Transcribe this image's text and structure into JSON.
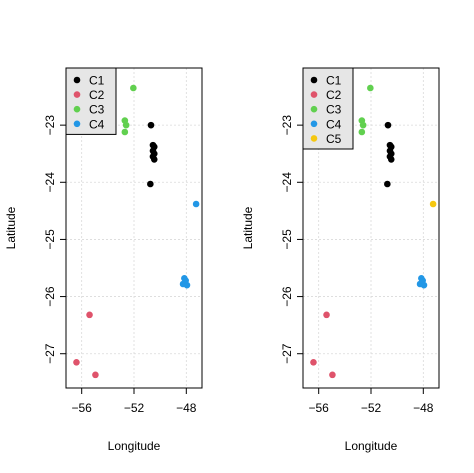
{
  "chart_data": [
    {
      "type": "scatter",
      "xlabel": "Longitude",
      "ylabel": "Latitude",
      "xlim": [
        -57.2,
        -46.8
      ],
      "ylim": [
        -27.6,
        -22.0
      ],
      "xticks": [
        -56,
        -52,
        -48
      ],
      "yticks": [
        -23,
        -24,
        -25,
        -26,
        -27
      ],
      "grid": true,
      "legend": {
        "position": "top-left",
        "entries": [
          {
            "label": "C1",
            "color": "#000000"
          },
          {
            "label": "C2",
            "color": "#DF536B"
          },
          {
            "label": "C3",
            "color": "#61D04F"
          },
          {
            "label": "C4",
            "color": "#2297E6"
          }
        ]
      },
      "series": [
        {
          "name": "C1",
          "color": "#000000",
          "points": [
            {
              "x": -50.7,
              "y": -23.0
            },
            {
              "x": -50.55,
              "y": -23.35
            },
            {
              "x": -50.45,
              "y": -23.38
            },
            {
              "x": -50.55,
              "y": -23.45
            },
            {
              "x": -50.45,
              "y": -23.5
            },
            {
              "x": -50.55,
              "y": -23.55
            },
            {
              "x": -50.45,
              "y": -23.6
            },
            {
              "x": -50.75,
              "y": -24.03
            }
          ]
        },
        {
          "name": "C2",
          "color": "#DF536B",
          "points": [
            {
              "x": -55.4,
              "y": -26.32
            },
            {
              "x": -56.4,
              "y": -27.15
            },
            {
              "x": -54.95,
              "y": -27.37
            }
          ]
        },
        {
          "name": "C3",
          "color": "#61D04F",
          "points": [
            {
              "x": -52.05,
              "y": -22.35
            },
            {
              "x": -52.7,
              "y": -22.92
            },
            {
              "x": -52.6,
              "y": -23.0
            },
            {
              "x": -52.7,
              "y": -23.12
            }
          ]
        },
        {
          "name": "C4",
          "color": "#2297E6",
          "points": [
            {
              "x": -47.25,
              "y": -24.38
            },
            {
              "x": -48.15,
              "y": -25.68
            },
            {
              "x": -48.25,
              "y": -25.78
            },
            {
              "x": -47.95,
              "y": -25.8
            },
            {
              "x": -48.05,
              "y": -25.72
            }
          ]
        }
      ]
    },
    {
      "type": "scatter",
      "xlabel": "Longitude",
      "ylabel": "Latitude",
      "xlim": [
        -57.2,
        -46.8
      ],
      "ylim": [
        -27.6,
        -22.0
      ],
      "xticks": [
        -56,
        -52,
        -48
      ],
      "yticks": [
        -23,
        -24,
        -25,
        -26,
        -27
      ],
      "grid": true,
      "legend": {
        "position": "top-left",
        "entries": [
          {
            "label": "C1",
            "color": "#000000"
          },
          {
            "label": "C2",
            "color": "#DF536B"
          },
          {
            "label": "C3",
            "color": "#61D04F"
          },
          {
            "label": "C4",
            "color": "#2297E6"
          },
          {
            "label": "C5",
            "color": "#F5C710"
          }
        ]
      },
      "series": [
        {
          "name": "C1",
          "color": "#000000",
          "points": [
            {
              "x": -50.7,
              "y": -23.0
            },
            {
              "x": -50.55,
              "y": -23.35
            },
            {
              "x": -50.45,
              "y": -23.38
            },
            {
              "x": -50.55,
              "y": -23.45
            },
            {
              "x": -50.45,
              "y": -23.5
            },
            {
              "x": -50.55,
              "y": -23.55
            },
            {
              "x": -50.45,
              "y": -23.6
            },
            {
              "x": -50.75,
              "y": -24.03
            }
          ]
        },
        {
          "name": "C2",
          "color": "#DF536B",
          "points": [
            {
              "x": -55.4,
              "y": -26.32
            },
            {
              "x": -56.4,
              "y": -27.15
            },
            {
              "x": -54.95,
              "y": -27.37
            }
          ]
        },
        {
          "name": "C3",
          "color": "#61D04F",
          "points": [
            {
              "x": -52.05,
              "y": -22.35
            },
            {
              "x": -52.7,
              "y": -22.92
            },
            {
              "x": -52.6,
              "y": -23.0
            },
            {
              "x": -52.7,
              "y": -23.12
            }
          ]
        },
        {
          "name": "C4",
          "color": "#2297E6",
          "points": [
            {
              "x": -48.15,
              "y": -25.68
            },
            {
              "x": -48.25,
              "y": -25.78
            },
            {
              "x": -47.95,
              "y": -25.8
            },
            {
              "x": -48.05,
              "y": -25.72
            }
          ]
        },
        {
          "name": "C5",
          "color": "#F5C710",
          "points": [
            {
              "x": -47.25,
              "y": -24.38
            }
          ]
        }
      ]
    }
  ]
}
